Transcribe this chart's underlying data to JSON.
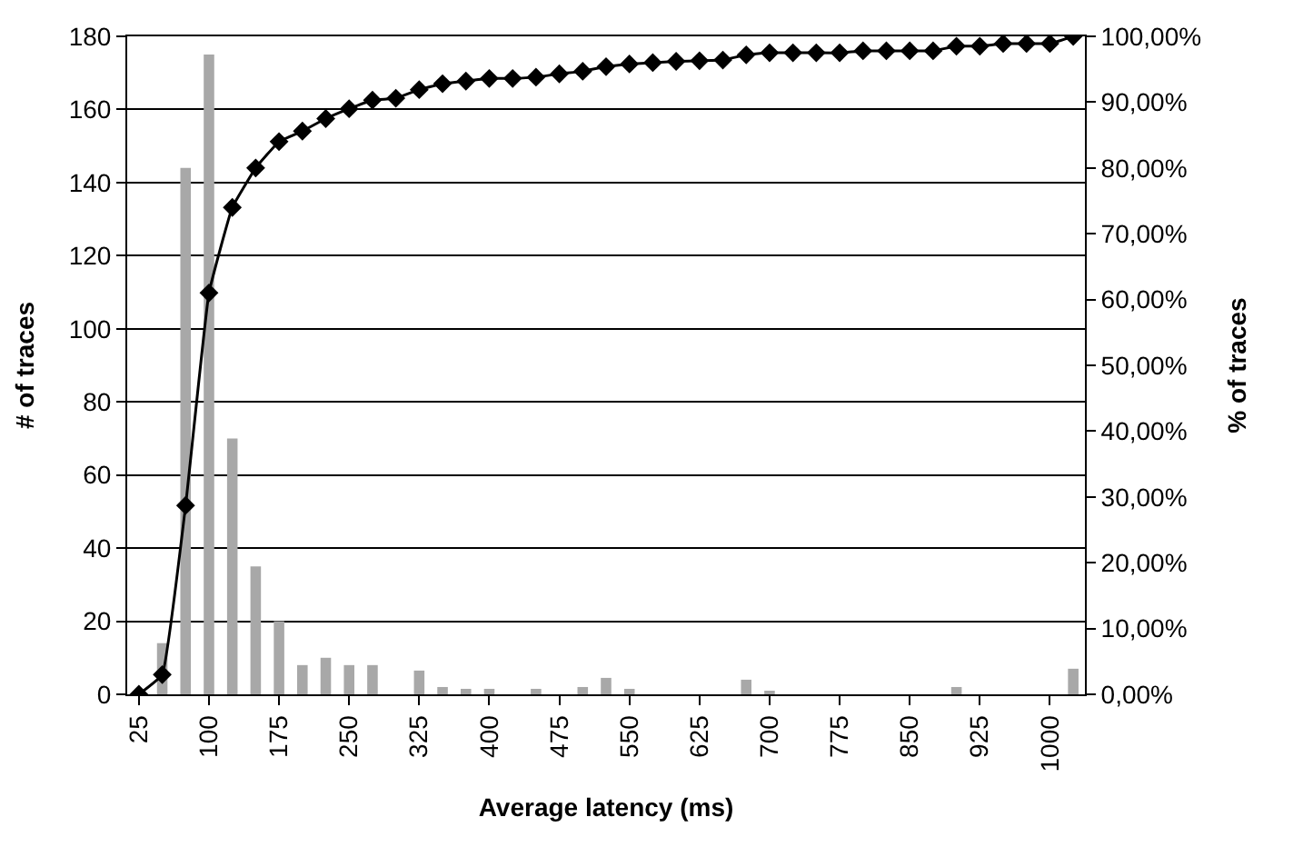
{
  "chart_data": {
    "type": "bar",
    "xlabel": "Average latency (ms)",
    "ylabel": "# of traces",
    "y2label": "% of traces",
    "categories": [
      "25",
      null,
      null,
      "100",
      null,
      null,
      "175",
      null,
      null,
      "250",
      null,
      null,
      "325",
      null,
      null,
      "400",
      null,
      null,
      "475",
      null,
      null,
      "550",
      null,
      null,
      "625",
      null,
      null,
      "700",
      null,
      null,
      "775",
      null,
      null,
      "850",
      null,
      null,
      "925",
      null,
      null,
      "1000",
      null
    ],
    "series": [
      {
        "color": "#a8a8a8",
        "values": [
          0,
          14,
          144,
          175,
          70,
          35,
          20,
          8,
          10,
          8,
          8,
          0,
          6.5,
          2,
          1.5,
          1.5,
          0,
          1.5,
          0,
          2,
          4.5,
          1.5,
          0,
          0,
          0,
          0,
          4,
          1,
          0,
          0,
          0,
          0,
          0,
          0,
          0,
          2,
          0,
          0,
          0,
          0,
          7
        ]
      },
      {
        "type": "line",
        "axis": "y2",
        "color": "#000000",
        "marker": "diamond",
        "values": [
          0,
          3,
          28.7,
          61,
          74,
          80,
          84,
          85.6,
          87.5,
          89,
          90.3,
          90.6,
          91.9,
          92.8,
          93.2,
          93.6,
          93.6,
          93.8,
          94.3,
          94.7,
          95.4,
          95.8,
          96,
          96.2,
          96.3,
          96.4,
          97.2,
          97.5,
          97.5,
          97.5,
          97.5,
          97.8,
          97.8,
          97.8,
          97.8,
          98.5,
          98.5,
          98.9,
          98.9,
          98.9,
          100
        ]
      }
    ],
    "ylim": [
      0,
      180
    ],
    "yticks": [
      0,
      20,
      40,
      60,
      80,
      100,
      120,
      140,
      160,
      180
    ],
    "y2lim": [
      0,
      100
    ],
    "y2ticks": [
      {
        "value": 0,
        "label": "0,00%"
      },
      {
        "value": 10,
        "label": "10,00%"
      },
      {
        "value": 20,
        "label": "20,00%"
      },
      {
        "value": 30,
        "label": "30,00%"
      },
      {
        "value": 40,
        "label": "40,00%"
      },
      {
        "value": 50,
        "label": "50,00%"
      },
      {
        "value": 60,
        "label": "60,00%"
      },
      {
        "value": 70,
        "label": "70,00%"
      },
      {
        "value": 80,
        "label": "80,00%"
      },
      {
        "value": 90,
        "label": "90,00%"
      },
      {
        "value": 100,
        "label": "100,00%"
      }
    ],
    "grid": "y"
  }
}
